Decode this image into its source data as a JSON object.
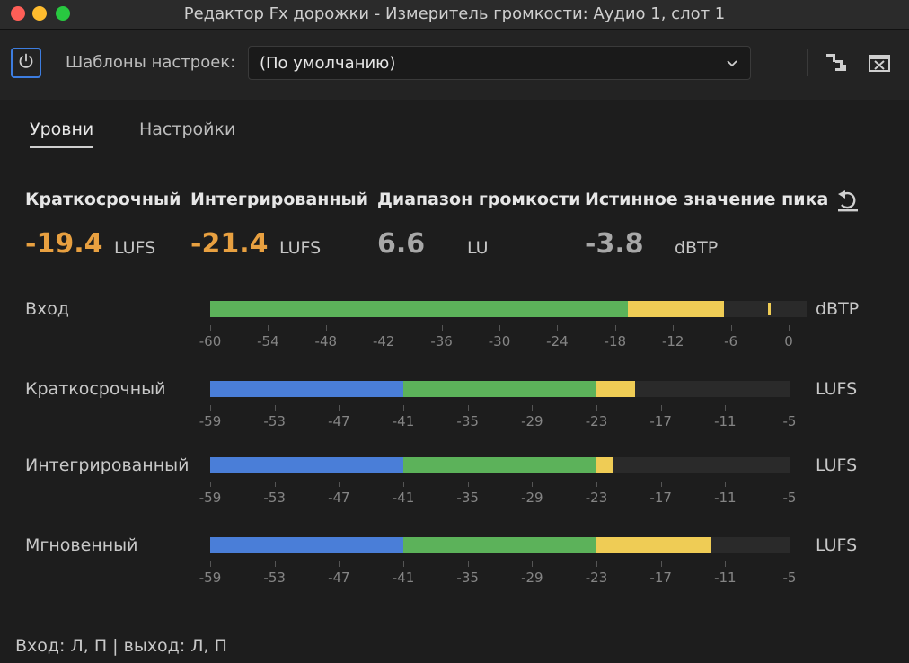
{
  "window": {
    "title": "Редактор Fx дорожки - Измеритель громкости: Аудио 1, слот 1"
  },
  "toolbar": {
    "power_icon": "power-icon",
    "preset_label": "Шаблоны настроек:",
    "preset_value": "(По умолчанию)",
    "menu_icon": "menu-icon",
    "close_icon": "close-icon"
  },
  "tabs": [
    {
      "label": "Уровни",
      "active": true
    },
    {
      "label": "Настройки",
      "active": false
    }
  ],
  "stats": [
    {
      "label": "Краткосрочный",
      "value": "-19.4",
      "unit": "LUFS",
      "color": "#e8a040"
    },
    {
      "label": "Интегрированный",
      "value": "-21.4",
      "unit": "LUFS",
      "color": "#e8a040"
    },
    {
      "label": "Диапазон громкости",
      "value": "6.6",
      "unit": "LU",
      "color": "#a8a8a8"
    },
    {
      "label": "Истинное значение пика",
      "value": "-3.8",
      "unit": "dBTP",
      "color": "#a8a8a8"
    }
  ],
  "reset_icon": "reset-icon",
  "meters": [
    {
      "label": "Вход",
      "unit": "dBTP",
      "scale": [
        "-60",
        "-54",
        "-48",
        "-42",
        "-36",
        "-30",
        "-24",
        "-18",
        "-12",
        "-6",
        "0"
      ],
      "range": [
        -60,
        0
      ],
      "segments": [
        {
          "color": "#5cb25a",
          "from": -60,
          "to": -18
        },
        {
          "color": "#efcc55",
          "from": -18,
          "to": -8.3
        }
      ],
      "peak": -3.8
    },
    {
      "label": "Краткосрочный",
      "unit": "LUFS",
      "scale": [
        "-59",
        "-53",
        "-47",
        "-41",
        "-35",
        "-29",
        "-23",
        "-17",
        "-11",
        "-5"
      ],
      "range": [
        -59,
        -5
      ],
      "segments": [
        {
          "color": "#4a7ed8",
          "from": -59,
          "to": -41
        },
        {
          "color": "#5cb25a",
          "from": -41,
          "to": -23
        },
        {
          "color": "#efcc55",
          "from": -23,
          "to": -19.4
        }
      ]
    },
    {
      "label": "Интегрированный",
      "unit": "LUFS",
      "scale": [
        "-59",
        "-53",
        "-47",
        "-41",
        "-35",
        "-29",
        "-23",
        "-17",
        "-11",
        "-5"
      ],
      "range": [
        -59,
        -5
      ],
      "segments": [
        {
          "color": "#4a7ed8",
          "from": -59,
          "to": -41
        },
        {
          "color": "#5cb25a",
          "from": -41,
          "to": -23
        },
        {
          "color": "#efcc55",
          "from": -23,
          "to": -21.4
        }
      ]
    },
    {
      "label": "Мгновенный",
      "unit": "LUFS",
      "scale": [
        "-59",
        "-53",
        "-47",
        "-41",
        "-35",
        "-29",
        "-23",
        "-17",
        "-11",
        "-5"
      ],
      "range": [
        -59,
        -5
      ],
      "segments": [
        {
          "color": "#4a7ed8",
          "from": -59,
          "to": -41
        },
        {
          "color": "#5cb25a",
          "from": -41,
          "to": -23
        },
        {
          "color": "#efcc55",
          "from": -23,
          "to": -12.3
        }
      ]
    }
  ],
  "footer": {
    "text": "Вход: Л, П | выход: Л, П"
  }
}
